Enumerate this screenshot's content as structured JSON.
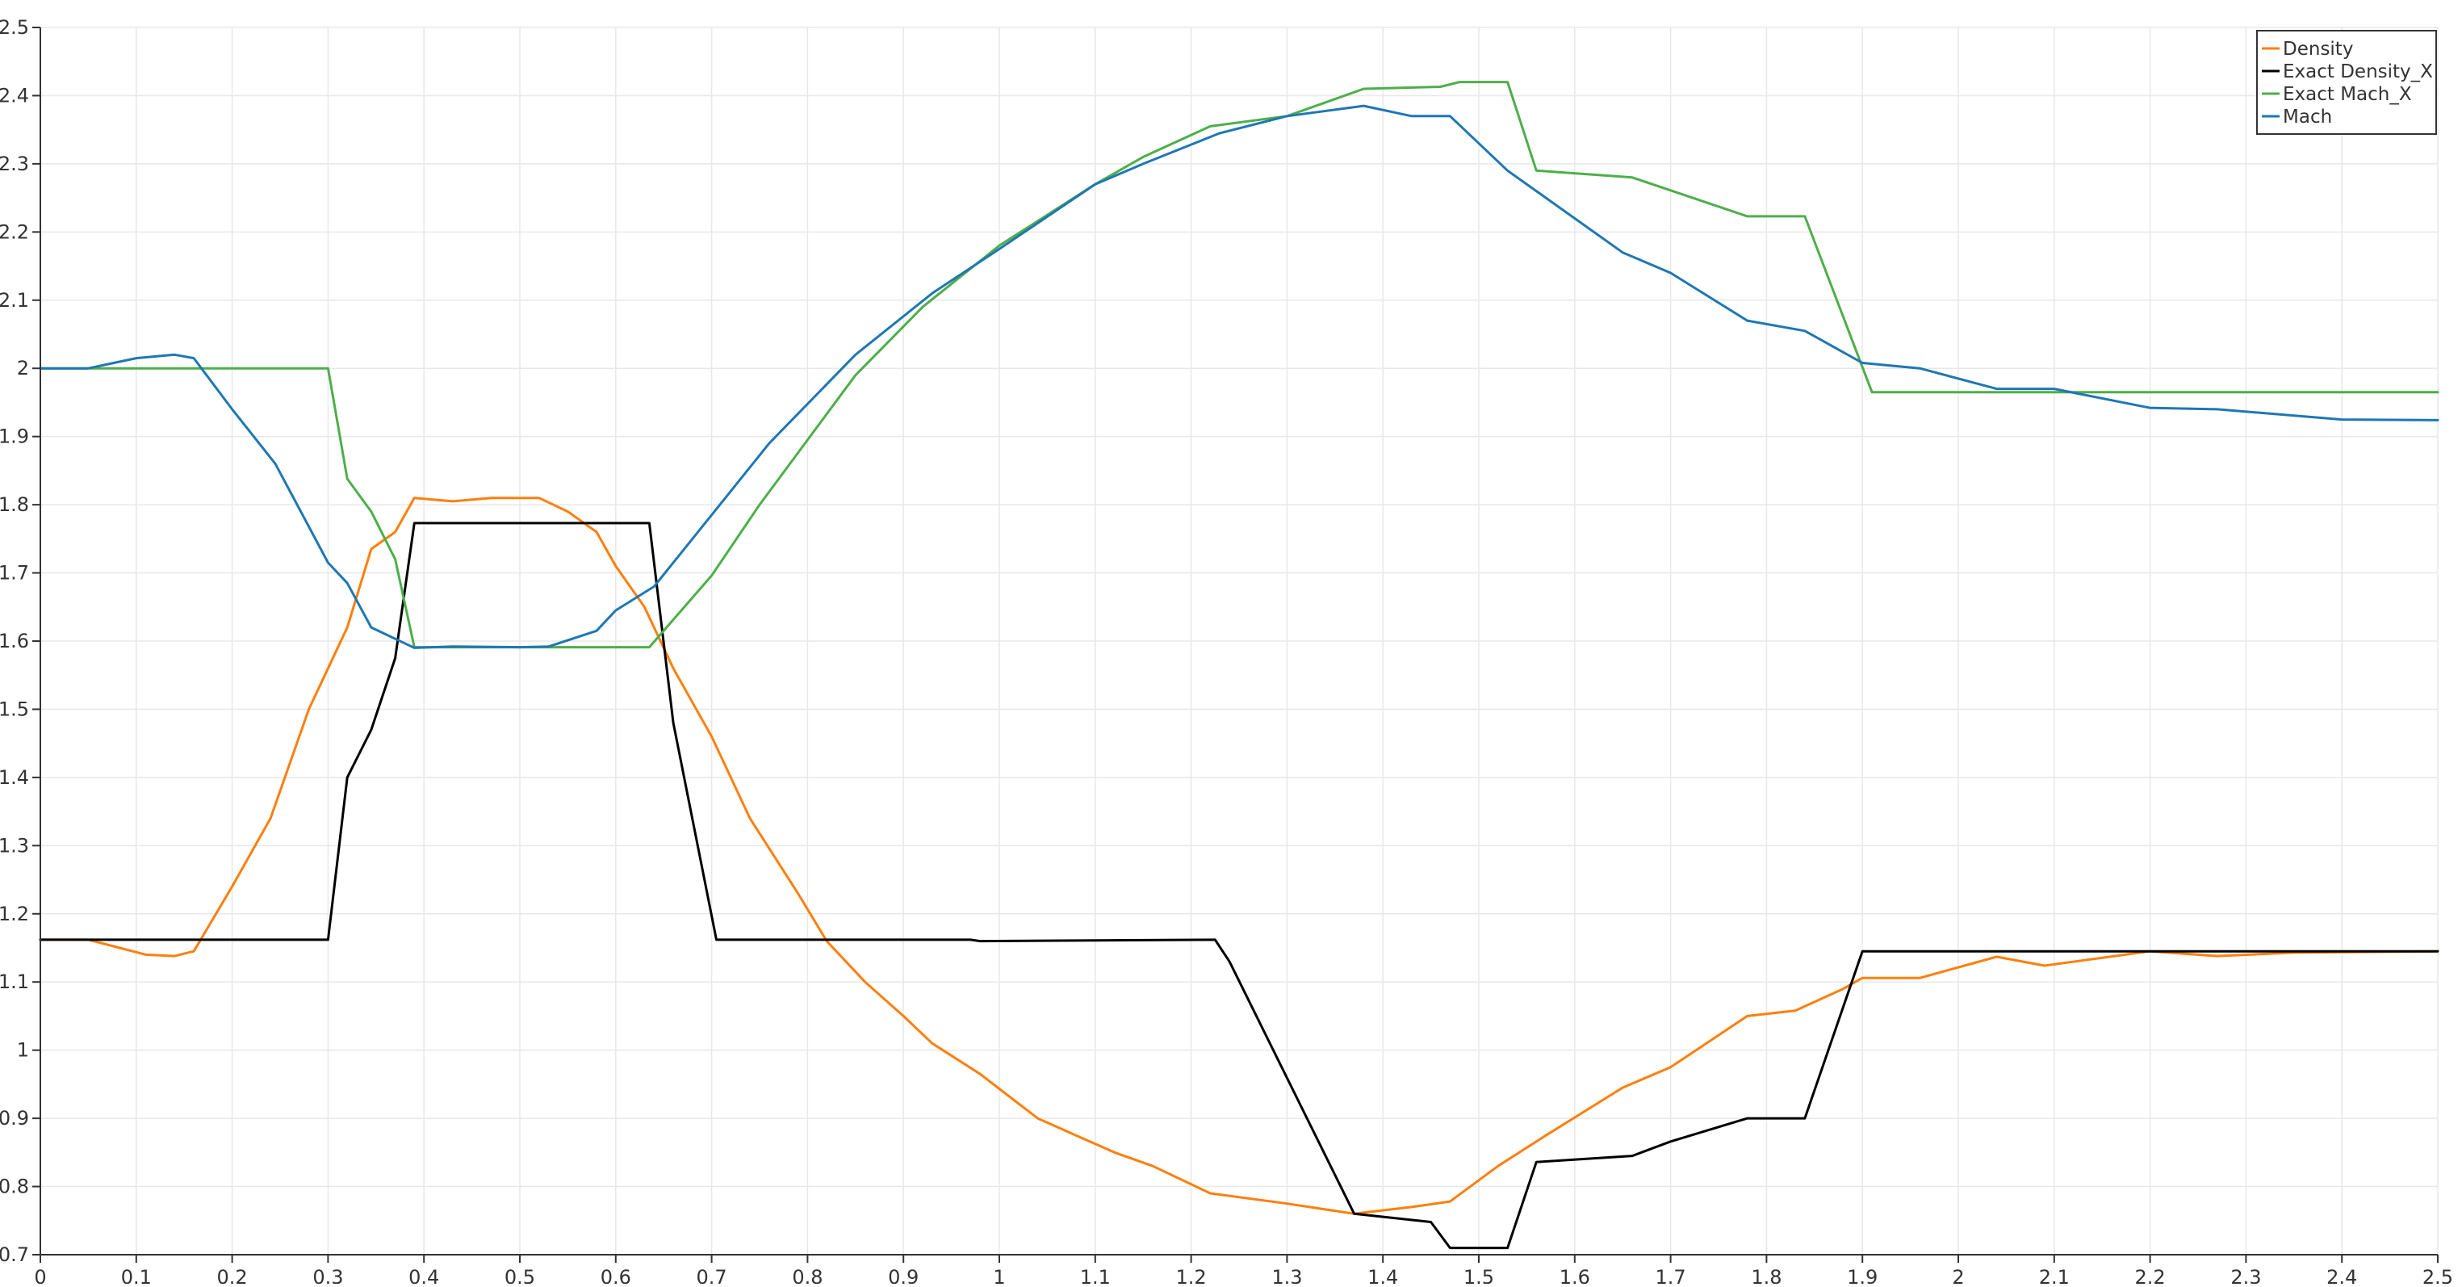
{
  "colors": {
    "Density": "#ff7f0e",
    "Exact Density_X": "#000000",
    "Exact Mach_X": "#4daf4a",
    "Mach": "#1f77b4",
    "grid": "#e8e8e8",
    "axis": "#333333"
  },
  "chart_data": {
    "type": "line",
    "title": "",
    "xlabel": "",
    "ylabel": "",
    "xlim": [
      0,
      2.5
    ],
    "ylim": [
      0.7,
      2.5
    ],
    "grid": true,
    "legend_position": "top-right",
    "x_ticks": [
      "0",
      "0.1",
      "0.2",
      "0.3",
      "0.4",
      "0.5",
      "0.6",
      "0.7",
      "0.8",
      "0.9",
      "1",
      "1.1",
      "1.2",
      "1.3",
      "1.4",
      "1.5",
      "1.6",
      "1.7",
      "1.8",
      "1.9",
      "2",
      "2.1",
      "2.2",
      "2.3",
      "2.4",
      "2.5"
    ],
    "y_ticks": [
      "0.7",
      "0.8",
      "0.9",
      "1",
      "1.1",
      "1.2",
      "1.3",
      "1.4",
      "1.5",
      "1.6",
      "1.7",
      "1.8",
      "1.9",
      "2",
      "2.1",
      "2.2",
      "2.3",
      "2.4",
      "2.5"
    ],
    "series": [
      {
        "name": "Density",
        "points": [
          [
            0,
            1.162
          ],
          [
            0.05,
            1.162
          ],
          [
            0.11,
            1.14
          ],
          [
            0.14,
            1.138
          ],
          [
            0.16,
            1.145
          ],
          [
            0.2,
            1.24
          ],
          [
            0.24,
            1.34
          ],
          [
            0.28,
            1.5
          ],
          [
            0.3,
            1.56
          ],
          [
            0.32,
            1.62
          ],
          [
            0.345,
            1.735
          ],
          [
            0.37,
            1.76
          ],
          [
            0.39,
            1.81
          ],
          [
            0.43,
            1.805
          ],
          [
            0.47,
            1.81
          ],
          [
            0.52,
            1.81
          ],
          [
            0.55,
            1.79
          ],
          [
            0.58,
            1.76
          ],
          [
            0.6,
            1.71
          ],
          [
            0.63,
            1.65
          ],
          [
            0.66,
            1.56
          ],
          [
            0.7,
            1.46
          ],
          [
            0.74,
            1.34
          ],
          [
            0.79,
            1.23
          ],
          [
            0.82,
            1.16
          ],
          [
            0.86,
            1.1
          ],
          [
            0.9,
            1.05
          ],
          [
            0.93,
            1.01
          ],
          [
            0.98,
            0.965
          ],
          [
            1.04,
            0.9
          ],
          [
            1.08,
            0.875
          ],
          [
            1.12,
            0.85
          ],
          [
            1.16,
            0.83
          ],
          [
            1.22,
            0.79
          ],
          [
            1.3,
            0.775
          ],
          [
            1.37,
            0.76
          ],
          [
            1.43,
            0.77
          ],
          [
            1.47,
            0.778
          ],
          [
            1.52,
            0.83
          ],
          [
            1.57,
            0.875
          ],
          [
            1.65,
            0.945
          ],
          [
            1.7,
            0.975
          ],
          [
            1.78,
            1.05
          ],
          [
            1.83,
            1.058
          ],
          [
            1.88,
            1.09
          ],
          [
            1.9,
            1.106
          ],
          [
            1.96,
            1.106
          ],
          [
            2.04,
            1.137
          ],
          [
            2.09,
            1.124
          ],
          [
            2.2,
            1.145
          ],
          [
            2.27,
            1.138
          ],
          [
            2.35,
            1.143
          ],
          [
            2.5,
            1.145
          ]
        ]
      },
      {
        "name": "Exact Density_X",
        "points": [
          [
            0,
            1.162
          ],
          [
            0.3,
            1.162
          ],
          [
            0.32,
            1.4
          ],
          [
            0.345,
            1.47
          ],
          [
            0.37,
            1.575
          ],
          [
            0.39,
            1.773
          ],
          [
            0.635,
            1.773
          ],
          [
            0.66,
            1.48
          ],
          [
            0.705,
            1.162
          ],
          [
            0.97,
            1.162
          ],
          [
            0.98,
            1.16
          ],
          [
            1.225,
            1.162
          ],
          [
            1.24,
            1.13
          ],
          [
            1.37,
            0.76
          ],
          [
            1.45,
            0.748
          ],
          [
            1.47,
            0.71
          ],
          [
            1.53,
            0.71
          ],
          [
            1.56,
            0.836
          ],
          [
            1.66,
            0.845
          ],
          [
            1.7,
            0.866
          ],
          [
            1.78,
            0.9
          ],
          [
            1.84,
            0.9
          ],
          [
            1.9,
            1.145
          ],
          [
            2.5,
            1.145
          ]
        ]
      },
      {
        "name": "Exact Mach_X",
        "points": [
          [
            0,
            2.0
          ],
          [
            0.3,
            2.0
          ],
          [
            0.32,
            1.838
          ],
          [
            0.345,
            1.79
          ],
          [
            0.37,
            1.72
          ],
          [
            0.39,
            1.591
          ],
          [
            0.635,
            1.591
          ],
          [
            0.7,
            1.696
          ],
          [
            0.75,
            1.8
          ],
          [
            0.8,
            1.895
          ],
          [
            0.85,
            1.99
          ],
          [
            0.92,
            2.09
          ],
          [
            1.0,
            2.18
          ],
          [
            1.1,
            2.27
          ],
          [
            1.15,
            2.31
          ],
          [
            1.22,
            2.355
          ],
          [
            1.3,
            2.37
          ],
          [
            1.35,
            2.395
          ],
          [
            1.38,
            2.41
          ],
          [
            1.46,
            2.413
          ],
          [
            1.48,
            2.42
          ],
          [
            1.53,
            2.42
          ],
          [
            1.56,
            2.29
          ],
          [
            1.66,
            2.28
          ],
          [
            1.78,
            2.223
          ],
          [
            1.84,
            2.223
          ],
          [
            1.91,
            1.965
          ],
          [
            2.5,
            1.965
          ]
        ]
      },
      {
        "name": "Mach",
        "points": [
          [
            0,
            2.0
          ],
          [
            0.05,
            2.0
          ],
          [
            0.1,
            2.015
          ],
          [
            0.14,
            2.02
          ],
          [
            0.16,
            2.015
          ],
          [
            0.2,
            1.94
          ],
          [
            0.245,
            1.86
          ],
          [
            0.3,
            1.715
          ],
          [
            0.32,
            1.685
          ],
          [
            0.345,
            1.62
          ],
          [
            0.39,
            1.59
          ],
          [
            0.43,
            1.592
          ],
          [
            0.5,
            1.591
          ],
          [
            0.53,
            1.592
          ],
          [
            0.58,
            1.615
          ],
          [
            0.6,
            1.645
          ],
          [
            0.64,
            1.68
          ],
          [
            0.7,
            1.785
          ],
          [
            0.76,
            1.89
          ],
          [
            0.85,
            2.02
          ],
          [
            0.93,
            2.11
          ],
          [
            1.0,
            2.175
          ],
          [
            1.1,
            2.27
          ],
          [
            1.15,
            2.3
          ],
          [
            1.23,
            2.345
          ],
          [
            1.3,
            2.37
          ],
          [
            1.38,
            2.385
          ],
          [
            1.43,
            2.37
          ],
          [
            1.47,
            2.37
          ],
          [
            1.53,
            2.29
          ],
          [
            1.65,
            2.17
          ],
          [
            1.7,
            2.14
          ],
          [
            1.78,
            2.07
          ],
          [
            1.84,
            2.055
          ],
          [
            1.9,
            2.008
          ],
          [
            1.96,
            2.0
          ],
          [
            2.04,
            1.97
          ],
          [
            2.1,
            1.97
          ],
          [
            2.2,
            1.942
          ],
          [
            2.27,
            1.94
          ],
          [
            2.4,
            1.925
          ],
          [
            2.5,
            1.924
          ]
        ]
      }
    ]
  }
}
